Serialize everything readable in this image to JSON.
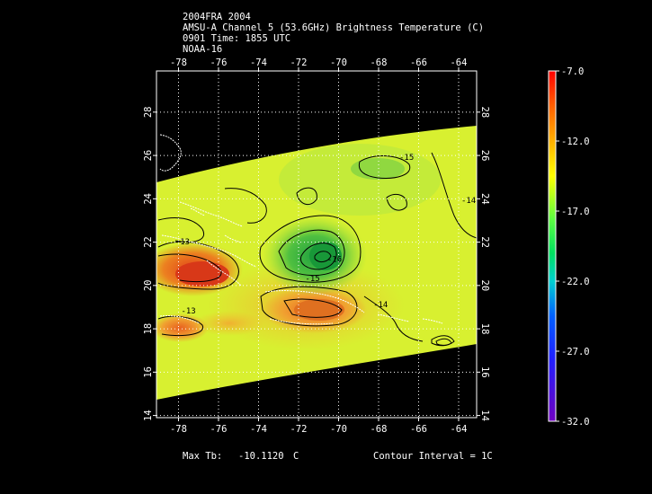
{
  "header": {
    "line1": "2004FRA 2004",
    "line2": "AMSU-A Channel 5 (53.6GHz) Brightness Temperature (C)",
    "line3": "0901 Time: 1855 UTC",
    "line4": "NOAA-16"
  },
  "footer": {
    "max_label": "Max Tb:",
    "max_value": "-10.1120",
    "max_unit": "C",
    "contour_interval": "Contour Interval = 1C"
  },
  "colors": {
    "background": "#000000",
    "ocean_field": "#d8f030",
    "warm": "#e06020",
    "cool": "#30b040"
  },
  "chart_data": {
    "type": "heatmap",
    "title": "AMSU-A Channel 5 (53.6GHz) Brightness Temperature (C)",
    "x_ticks": [
      "-78",
      "-76",
      "-74",
      "-72",
      "-70",
      "-68",
      "-66",
      "-64"
    ],
    "x_tick_values": [
      -78,
      -76,
      -74,
      -72,
      -70,
      -68,
      -66,
      -64
    ],
    "y_ticks": [
      "14",
      "16",
      "18",
      "20",
      "22",
      "24",
      "26",
      "28"
    ],
    "y_tick_values": [
      14,
      16,
      18,
      20,
      22,
      24,
      26,
      28
    ],
    "xlim": [
      -79.1,
      -63.1
    ],
    "ylim": [
      13.9,
      29.9
    ],
    "grid": true,
    "colorbar": {
      "labels": [
        "-7.0",
        "-12.0",
        "-17.0",
        "-22.0",
        "-27.0",
        "-32.0"
      ],
      "values": [
        -7.0,
        -12.0,
        -17.0,
        -22.0,
        -27.0,
        -32.0
      ],
      "range": [
        -32.0,
        -7.0
      ]
    },
    "contour_labels": [
      {
        "text": "-13",
        "lon": -77.8,
        "lat": 21.9
      },
      {
        "text": "-13",
        "lon": -77.5,
        "lat": 18.7
      },
      {
        "text": "-14",
        "lon": -63.5,
        "lat": 23.8
      },
      {
        "text": "-14",
        "lon": -67.9,
        "lat": 19.0
      },
      {
        "text": "-15",
        "lon": -66.6,
        "lat": 25.8
      },
      {
        "text": "-15",
        "lon": -71.3,
        "lat": 20.2
      },
      {
        "text": "-16",
        "lon": -70.2,
        "lat": 21.1
      }
    ]
  }
}
